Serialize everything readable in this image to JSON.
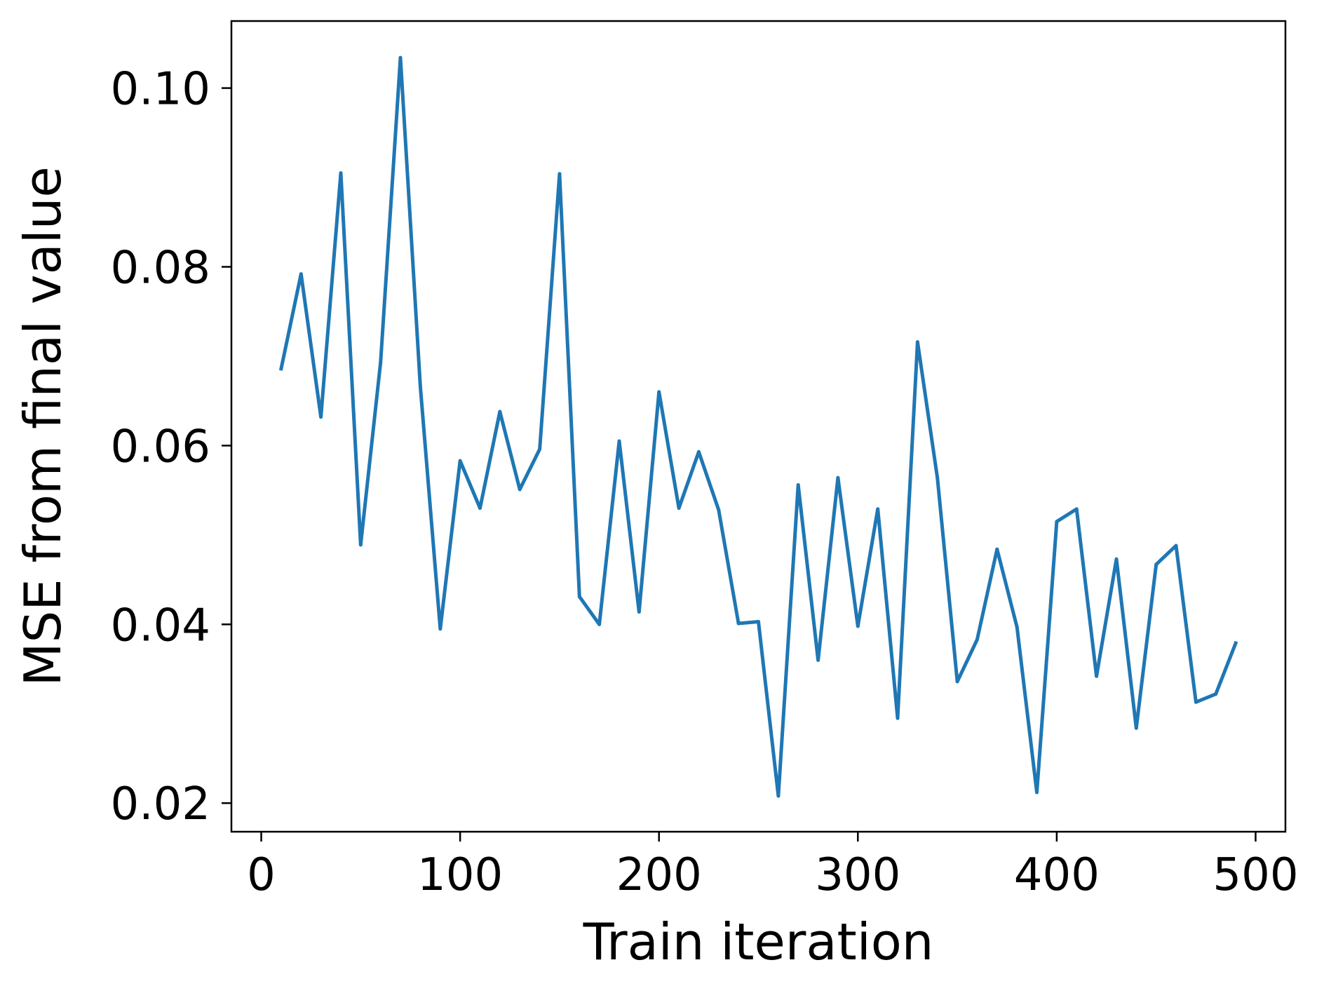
{
  "chart_data": {
    "type": "line",
    "title": "",
    "xlabel": "Train iteration",
    "ylabel": "MSE from final value",
    "xlim": [
      -15,
      515
    ],
    "ylim": [
      0.0168,
      0.1075
    ],
    "xticks": [
      0,
      100,
      200,
      300,
      400,
      500
    ],
    "xtick_labels": [
      "0",
      "100",
      "200",
      "300",
      "400",
      "500"
    ],
    "yticks": [
      0.02,
      0.04,
      0.06,
      0.08,
      0.1
    ],
    "ytick_labels": [
      "0.02",
      "0.04",
      "0.06",
      "0.08",
      "0.10"
    ],
    "grid": false,
    "legend": "none",
    "series": [
      {
        "color": "#1f77b4",
        "x": [
          10,
          20,
          30,
          40,
          50,
          60,
          70,
          80,
          90,
          100,
          110,
          120,
          130,
          140,
          150,
          160,
          170,
          180,
          190,
          200,
          210,
          220,
          230,
          240,
          250,
          260,
          270,
          280,
          290,
          300,
          310,
          320,
          330,
          340,
          350,
          360,
          370,
          380,
          390,
          400,
          410,
          420,
          430,
          440,
          450,
          460,
          470,
          480,
          490
        ],
        "values": [
          0.0686,
          0.0792,
          0.0632,
          0.0905,
          0.0489,
          0.0693,
          0.1034,
          0.0666,
          0.0395,
          0.0583,
          0.053,
          0.0638,
          0.0551,
          0.0596,
          0.0904,
          0.0431,
          0.04,
          0.0605,
          0.0414,
          0.066,
          0.053,
          0.0593,
          0.0528,
          0.0401,
          0.0403,
          0.0208,
          0.0556,
          0.036,
          0.0564,
          0.0398,
          0.0529,
          0.0295,
          0.0716,
          0.0564,
          0.0336,
          0.0383,
          0.0484,
          0.0397,
          0.0212,
          0.0515,
          0.0529,
          0.0342,
          0.0473,
          0.0284,
          0.0467,
          0.0488,
          0.0313,
          0.0322,
          0.0379
        ]
      }
    ]
  }
}
